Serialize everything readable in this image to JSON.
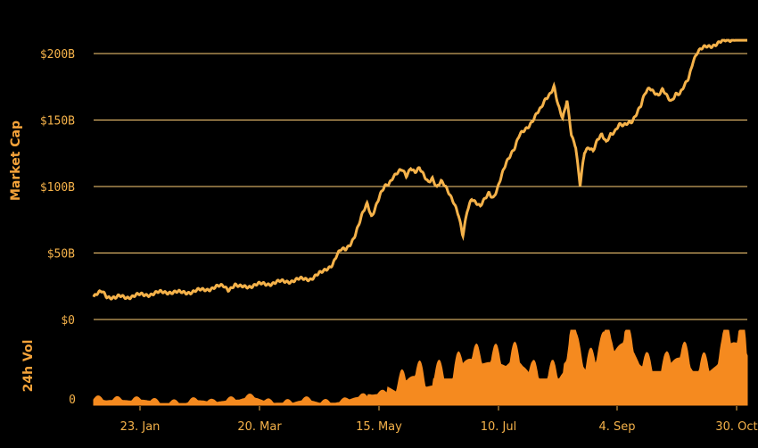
{
  "chart_data": [
    {
      "type": "line",
      "ylabel": "Market Cap",
      "ylim": [
        0,
        200
      ],
      "y_ticks": [
        {
          "value": 0,
          "label": "$0"
        },
        {
          "value": 50,
          "label": "$50B"
        },
        {
          "value": 100,
          "label": "$100B"
        },
        {
          "value": 150,
          "label": "$150B"
        },
        {
          "value": 200,
          "label": "$200B"
        }
      ],
      "grid": true,
      "color": "#f5b24a",
      "series": [
        {
          "x": [
            0,
            2,
            4,
            6,
            8,
            10,
            12,
            15,
            20,
            25,
            30,
            35,
            40,
            45,
            50,
            55,
            60,
            62,
            65,
            67,
            70,
            75,
            80,
            85,
            90,
            95,
            100,
            105,
            110,
            112,
            114,
            116,
            118,
            120,
            122,
            124,
            126,
            128,
            130,
            132,
            134,
            136,
            138,
            140,
            142,
            144,
            146,
            148,
            150,
            152,
            154,
            156,
            158,
            160,
            162,
            164,
            166,
            168,
            170,
            172,
            174,
            176,
            178,
            180,
            182,
            184,
            186,
            188,
            190,
            192,
            194,
            196,
            198,
            200,
            202,
            204,
            206,
            208,
            210,
            212,
            214,
            216,
            218,
            220,
            222,
            224,
            226,
            228,
            230,
            232,
            234,
            236,
            238,
            240,
            242,
            244,
            246,
            248,
            250,
            252,
            254,
            256,
            258,
            260,
            262,
            264,
            266,
            268,
            270,
            272,
            274,
            276,
            278,
            280,
            282,
            284,
            286,
            288,
            290,
            292,
            294,
            296,
            298,
            300,
            301
          ],
          "y": [
            17,
            19,
            21,
            18,
            17,
            16,
            17,
            17,
            18,
            19,
            20,
            21,
            20,
            21,
            22,
            24,
            25,
            23,
            26,
            24,
            25,
            26,
            27,
            28,
            29,
            30,
            31,
            35,
            42,
            48,
            52,
            53,
            57,
            62,
            70,
            80,
            88,
            78,
            85,
            93,
            100,
            103,
            108,
            110,
            112,
            108,
            115,
            111,
            113,
            108,
            104,
            107,
            99,
            103,
            100,
            95,
            88,
            78,
            62,
            82,
            92,
            88,
            84,
            90,
            96,
            92,
            98,
            108,
            118,
            125,
            130,
            138,
            141,
            145,
            150,
            155,
            158,
            165,
            170,
            176,
            160,
            150,
            165,
            140,
            130,
            100,
            125,
            130,
            128,
            135,
            138,
            133,
            140,
            142,
            146,
            145,
            148,
            150,
            155,
            160,
            170,
            175,
            172,
            168,
            172,
            168,
            165,
            170,
            169,
            175,
            182,
            195,
            201,
            203,
            205,
            206,
            207,
            208,
            209,
            210,
            211,
            212,
            213,
            214,
            215
          ]
        }
      ]
    },
    {
      "type": "area",
      "ylabel": "24h Vol",
      "y_ticks": [
        {
          "value": 0,
          "label": "0"
        }
      ],
      "x_ticks": [
        "23. Jan",
        "20. Mar",
        "15. May",
        "10. Jul",
        "4. Sep",
        "30. Oct"
      ],
      "color": "#f58a1f"
    }
  ]
}
